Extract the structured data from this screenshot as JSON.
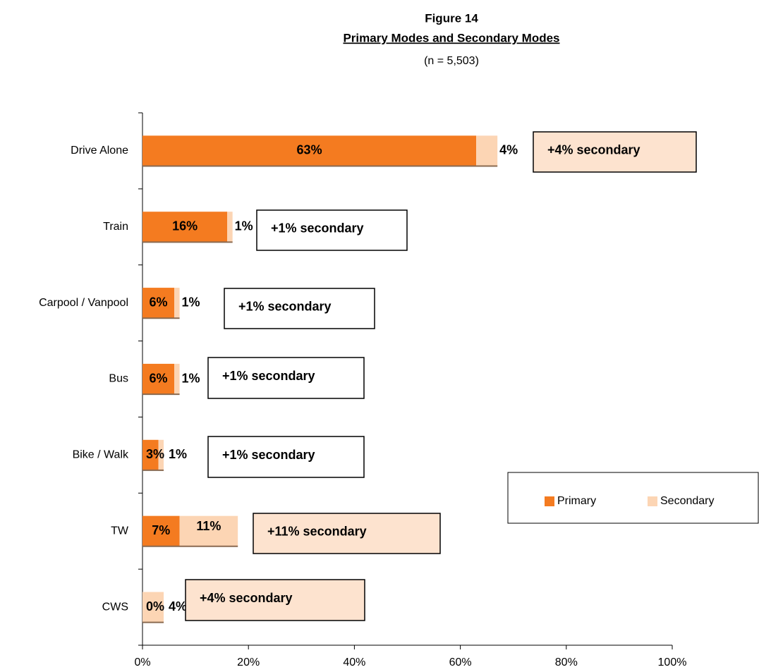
{
  "chart_data": {
    "type": "stacked-barh",
    "title": "Figure 14",
    "subtitle": "Primary Modes and Secondary Modes",
    "note": "(n = 5,503)",
    "categories": [
      "Drive Alone",
      "Train",
      "Carpool / Vanpool",
      "Bus",
      "Bike / Walk",
      "TW",
      "CWS"
    ],
    "series": [
      {
        "name": "Primary",
        "color": "#f47b20",
        "values": [
          63,
          16,
          6,
          6,
          3,
          7,
          0
        ],
        "value_labels": [
          "63%",
          "16%",
          "6%",
          "6%",
          "3%",
          "7%",
          "0%"
        ]
      },
      {
        "name": "Secondary",
        "color": "#fcd5b4",
        "values": [
          4,
          1,
          1,
          1,
          1,
          11,
          4
        ],
        "value_labels": [
          "4%",
          "1%",
          "1%",
          "1%",
          "1%",
          "11%",
          "4%"
        ]
      }
    ],
    "annotations": [
      {
        "text": "+4% secondary",
        "fill": "#fde3cf"
      },
      {
        "text": "+1% secondary",
        "fill": "#ffffff"
      },
      {
        "text": "+1% secondary",
        "fill": "#ffffff"
      },
      {
        "text": "+1% secondary",
        "fill": "#ffffff"
      },
      {
        "text": "+1% secondary",
        "fill": "#ffffff"
      },
      {
        "text": "+11% secondary",
        "fill": "#fde3cf"
      },
      {
        "text": "+4% secondary",
        "fill": "#fde3cf"
      }
    ],
    "xlim": [
      0,
      100
    ],
    "xticks": [
      {
        "value": 0,
        "label": "0%"
      },
      {
        "value": 20,
        "label": "20%"
      },
      {
        "value": 40,
        "label": "40%"
      },
      {
        "value": 60,
        "label": "60%"
      },
      {
        "value": 80,
        "label": "80%"
      },
      {
        "value": 100,
        "label": "100%"
      }
    ],
    "legend": "right"
  }
}
